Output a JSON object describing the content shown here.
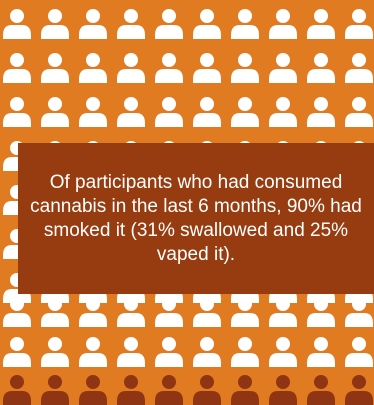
{
  "colors": {
    "background": "#E07B22",
    "person_icon": "#FFFFFF",
    "person_icon_highlight": "#8F3513",
    "caption_box": "#973C10",
    "caption_text": "#FFFFFF"
  },
  "icon_grid": {
    "icon": "person-icon",
    "rows": 10,
    "columns": 10,
    "highlighted_rows": 1
  },
  "caption": {
    "text": "Of participants who had consumed cannabis in the last 6 months, 90% had smoked it (31% swallowed and 25% vaped it)."
  }
}
